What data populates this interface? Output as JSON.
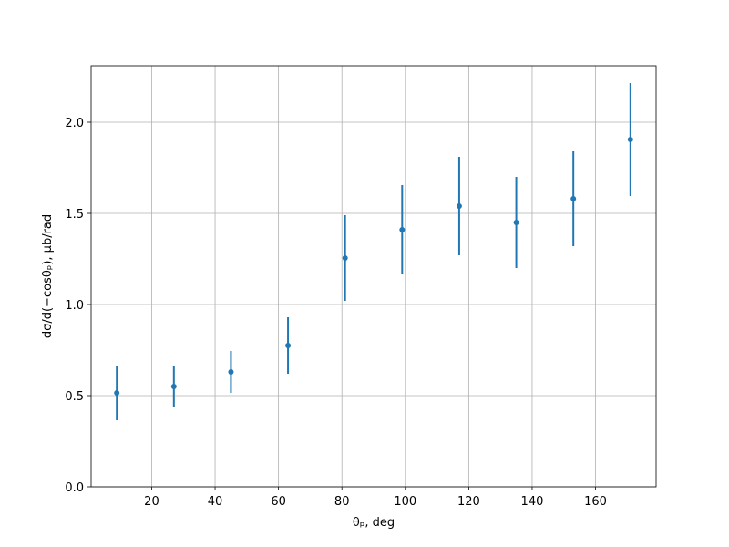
{
  "chart_data": {
    "type": "errorbar",
    "xlabel": "θₚ, deg",
    "ylabel": "dσ/d(−cosθₚ), µb/rad",
    "x": [
      9,
      27,
      45,
      63,
      81,
      99,
      117,
      135,
      153,
      171
    ],
    "values": [
      0.515,
      0.55,
      0.63,
      0.775,
      1.255,
      1.41,
      1.54,
      1.45,
      1.58,
      1.905
    ],
    "errors": [
      0.15,
      0.11,
      0.115,
      0.155,
      0.235,
      0.245,
      0.27,
      0.25,
      0.26,
      0.31
    ],
    "color": "#1f77b4",
    "xlim": [
      0.9,
      179.1
    ],
    "ylim": [
      0,
      2.31
    ],
    "xticks": [
      20,
      40,
      60,
      80,
      100,
      120,
      140,
      160
    ],
    "yticks": [
      {
        "value": 0,
        "label": "0.0"
      },
      {
        "value": 0.5,
        "label": "0.5"
      },
      {
        "value": 1,
        "label": "1.0"
      },
      {
        "value": 1.5,
        "label": "1.5"
      },
      {
        "value": 2,
        "label": "2.0"
      }
    ],
    "grid": true
  }
}
